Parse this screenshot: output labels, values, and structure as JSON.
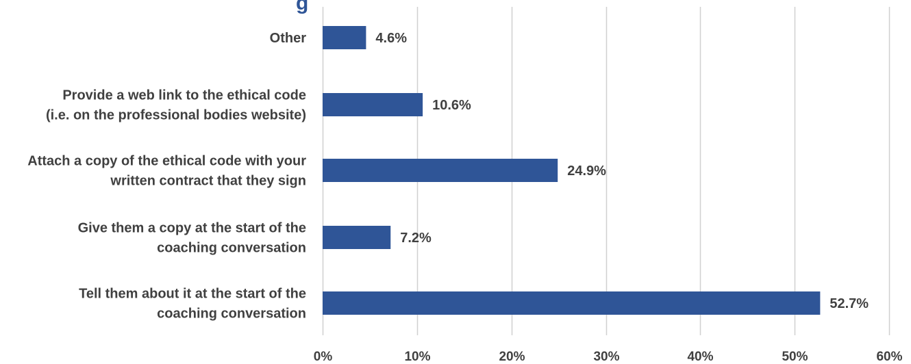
{
  "chart_data": {
    "type": "bar",
    "orientation": "horizontal",
    "title_fragment": "g",
    "categories": [
      [
        "Other"
      ],
      [
        "Provide a web link to the ethical code",
        "(i.e. on the professional bodies website)"
      ],
      [
        "Attach a copy of the ethical code with your",
        "written contract that they sign"
      ],
      [
        "Give them a copy at the start of the",
        "coaching conversation"
      ],
      [
        "Tell them about it at the start of the",
        "coaching conversation"
      ]
    ],
    "values": [
      4.6,
      10.6,
      24.9,
      7.2,
      52.7
    ],
    "data_labels": [
      "4.6%",
      "10.6%",
      "24.9%",
      "7.2%",
      "52.7%"
    ],
    "xlim": [
      0,
      60
    ],
    "ticks": [
      0,
      10,
      20,
      30,
      40,
      50,
      60
    ],
    "tick_labels": [
      "0%",
      "10%",
      "20%",
      "30%",
      "40%",
      "50%",
      "60%"
    ],
    "grid": true,
    "bar_color": "#2f5597",
    "grid_color": "#d0d0d0"
  }
}
